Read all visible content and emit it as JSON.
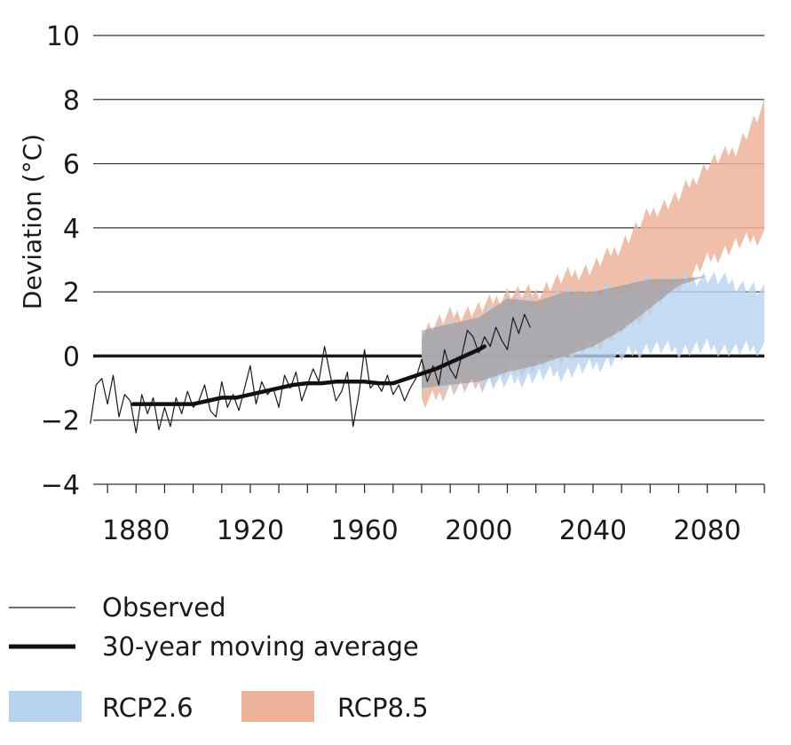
{
  "chart_data": {
    "type": "line",
    "title": "",
    "xlabel": "",
    "ylabel": "Deviation (°C)",
    "xlim": [
      1865,
      2100
    ],
    "ylim": [
      -4,
      10
    ],
    "grid": "horizontal",
    "legend_placement": "bottom",
    "x_ticks": [
      "1880",
      "1920",
      "1960",
      "2000",
      "2040",
      "2080"
    ],
    "y_ticks": [
      "10",
      "8",
      "6",
      "4",
      "2",
      "0",
      "−2",
      "−4"
    ],
    "series": [
      {
        "name": "Observed",
        "kind": "line",
        "color": "#1a1a1a",
        "x": [
          1864,
          1866,
          1868,
          1870,
          1872,
          1874,
          1876,
          1878,
          1880,
          1882,
          1884,
          1886,
          1888,
          1890,
          1892,
          1894,
          1896,
          1898,
          1900,
          1902,
          1904,
          1906,
          1908,
          1910,
          1912,
          1914,
          1916,
          1918,
          1920,
          1922,
          1924,
          1926,
          1928,
          1930,
          1932,
          1934,
          1936,
          1938,
          1940,
          1942,
          1944,
          1946,
          1948,
          1950,
          1952,
          1954,
          1956,
          1958,
          1960,
          1962,
          1964,
          1966,
          1968,
          1970,
          1972,
          1974,
          1976,
          1978,
          1980,
          1982,
          1984,
          1986,
          1988,
          1990,
          1992,
          1994,
          1996,
          1998,
          2000,
          2002,
          2004,
          2006,
          2008,
          2010,
          2012,
          2014,
          2016,
          2018
        ],
        "y": [
          -2.1,
          -0.9,
          -0.7,
          -1.5,
          -0.6,
          -1.9,
          -1.2,
          -1.4,
          -2.4,
          -1.2,
          -1.8,
          -1.3,
          -2.3,
          -1.6,
          -2.2,
          -1.3,
          -1.8,
          -1.1,
          -1.6,
          -1.4,
          -0.9,
          -1.7,
          -1.9,
          -0.8,
          -1.6,
          -1.2,
          -1.7,
          -1.0,
          -0.3,
          -1.5,
          -0.8,
          -1.2,
          -1.0,
          -1.6,
          -0.6,
          -1.0,
          -0.5,
          -1.4,
          -0.9,
          -0.4,
          -0.8,
          0.3,
          -0.6,
          -1.4,
          -1.1,
          -0.5,
          -2.2,
          -1.2,
          0.2,
          -1.0,
          -0.8,
          -1.1,
          -0.6,
          -1.2,
          -0.9,
          -1.4,
          -1.0,
          -0.7,
          -0.1,
          -0.8,
          -0.3,
          -0.9,
          0.2,
          -0.4,
          -0.7,
          0.0,
          0.8,
          0.6,
          0.1,
          0.6,
          0.3,
          0.9,
          0.5,
          0.2,
          1.2,
          0.7,
          1.3,
          0.9
        ]
      },
      {
        "name": "30-year moving average",
        "kind": "line",
        "color": "#111111",
        "x": [
          1879,
          1885,
          1890,
          1895,
          1900,
          1905,
          1910,
          1915,
          1920,
          1925,
          1930,
          1935,
          1940,
          1945,
          1950,
          1955,
          1960,
          1965,
          1970,
          1975,
          1980,
          1985,
          1990,
          1995,
          2000,
          2002
        ],
        "y": [
          -1.5,
          -1.5,
          -1.5,
          -1.5,
          -1.5,
          -1.4,
          -1.3,
          -1.3,
          -1.2,
          -1.1,
          -1.0,
          -0.9,
          -0.85,
          -0.85,
          -0.8,
          -0.8,
          -0.8,
          -0.85,
          -0.85,
          -0.7,
          -0.55,
          -0.4,
          -0.2,
          0.0,
          0.2,
          0.3
        ]
      },
      {
        "name": "RCP8.5",
        "kind": "band",
        "color": "#edb39a",
        "x": [
          1980,
          1990,
          2000,
          2010,
          2020,
          2030,
          2040,
          2050,
          2060,
          2070,
          2080,
          2090,
          2100
        ],
        "lower": [
          -1.5,
          -1.0,
          -0.9,
          -0.5,
          -0.3,
          0.0,
          0.3,
          0.8,
          1.5,
          2.2,
          3.0,
          3.5,
          3.8
        ],
        "upper": [
          0.8,
          1.3,
          1.5,
          2.0,
          2.0,
          2.5,
          2.8,
          3.5,
          4.5,
          5.0,
          6.0,
          6.5,
          7.8
        ]
      },
      {
        "name": "RCP2.6",
        "kind": "band",
        "color": "#b7d3ef",
        "x": [
          1980,
          1990,
          2000,
          2010,
          2020,
          2030,
          2040,
          2050,
          2060,
          2070,
          2080,
          2090,
          2100
        ],
        "lower": [
          -1.0,
          -0.9,
          -0.8,
          -0.8,
          -0.6,
          -0.5,
          -0.3,
          0.0,
          0.3,
          0.2,
          0.3,
          0.2,
          0.3
        ],
        "upper": [
          0.8,
          1.0,
          1.2,
          1.8,
          1.7,
          2.0,
          2.0,
          2.2,
          2.4,
          2.4,
          2.5,
          2.3,
          2.0
        ]
      }
    ]
  },
  "legend": {
    "observed": "Observed",
    "moving_average": "30-year moving average",
    "rcp26": "RCP2.6",
    "rcp85": "RCP8.5"
  },
  "colors": {
    "rcp26": "#b7d3ef",
    "rcp85": "#edb39a",
    "observed": "#1a1a1a",
    "grid": "#222222"
  }
}
